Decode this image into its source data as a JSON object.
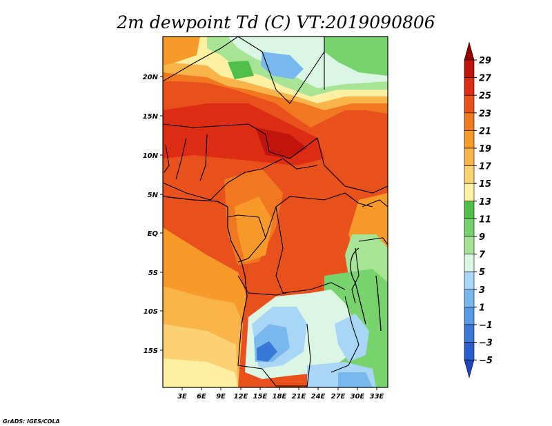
{
  "title": "2m dewpoint Td (C) VT:2019090806",
  "credit": "GrADS: IGES/COLA",
  "map": {
    "lat_labels": [
      "20N",
      "15N",
      "10N",
      "5N",
      "EQ",
      "5S",
      "10S",
      "15S"
    ],
    "lon_labels": [
      "3E",
      "6E",
      "9E",
      "12E",
      "15E",
      "18E",
      "21E",
      "24E",
      "27E",
      "30E",
      "33E"
    ]
  },
  "colorbar": {
    "levels": [
      "29",
      "27",
      "25",
      "23",
      "21",
      "19",
      "17",
      "15",
      "13",
      "11",
      "9",
      "7",
      "5",
      "3",
      "1",
      "−1",
      "−3",
      "−5"
    ],
    "colors": [
      "#960000",
      "#c0140c",
      "#dc2c14",
      "#e8501c",
      "#f07820",
      "#f79a2a",
      "#f9b54a",
      "#fbd173",
      "#fdf0a2",
      "#4fbf4a",
      "#78d26e",
      "#a7e496",
      "#dcf6e6",
      "#a9d6f6",
      "#79b8ed",
      "#5699e5",
      "#3a78d8",
      "#2a5ecc",
      "#1e46bc"
    ]
  }
}
